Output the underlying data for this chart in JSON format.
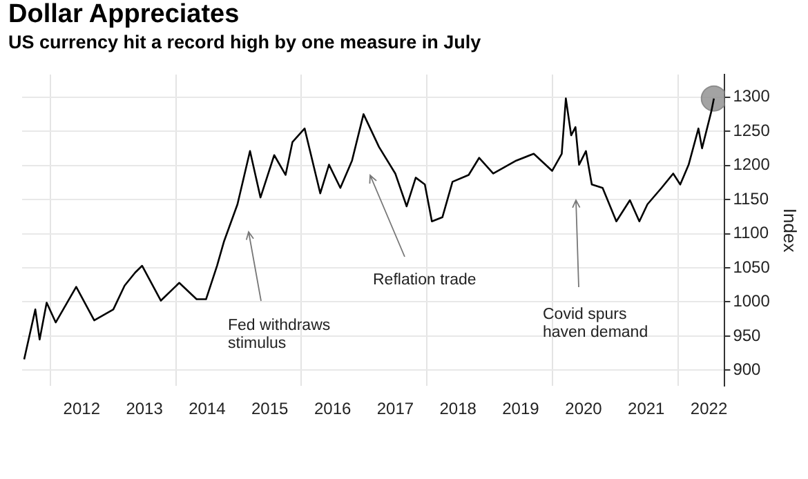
{
  "chart_data": {
    "type": "line",
    "title": "Dollar Appreciates",
    "subtitle": "US currency hit a record high by one measure in July",
    "ylabel": "Index",
    "xlim": [
      "2011-07-20",
      "2022-10-01"
    ],
    "xticks": [
      {
        "value": "2012-01-01",
        "label": null
      },
      {
        "value": "2012-07-01",
        "label": "2012"
      },
      {
        "value": "2013-07-01",
        "label": "2013"
      },
      {
        "value": "2014-01-01",
        "label": null
      },
      {
        "value": "2014-07-01",
        "label": "2014"
      },
      {
        "value": "2015-07-01",
        "label": "2015"
      },
      {
        "value": "2016-01-01",
        "label": null
      },
      {
        "value": "2016-07-01",
        "label": "2016"
      },
      {
        "value": "2017-07-01",
        "label": "2017"
      },
      {
        "value": "2018-01-01",
        "label": null
      },
      {
        "value": "2018-07-01",
        "label": "2018"
      },
      {
        "value": "2019-07-01",
        "label": "2019"
      },
      {
        "value": "2020-01-01",
        "label": null
      },
      {
        "value": "2020-07-01",
        "label": "2020"
      },
      {
        "value": "2021-07-01",
        "label": "2021"
      },
      {
        "value": "2022-01-01",
        "label": null
      },
      {
        "value": "2022-07-01",
        "label": "2022"
      }
    ],
    "ylim": [
      877,
      1333
    ],
    "yticks": [
      900,
      950,
      1000,
      1050,
      1100,
      1150,
      1200,
      1250,
      1300
    ],
    "grid": true,
    "legend": false,
    "marker": "none",
    "line_style": "solid",
    "series": [
      {
        "color": "#000000",
        "x": [
          "2011-08-01",
          "2011-10-05",
          "2011-10-30",
          "2011-12-10",
          "2012-02-01",
          "2012-05-30",
          "2012-09-12",
          "2013-01-01",
          "2013-03-08",
          "2013-05-08",
          "2013-06-18",
          "2013-10-05",
          "2014-01-20",
          "2014-05-01",
          "2014-06-25",
          "2014-08-28",
          "2014-10-08",
          "2014-12-25",
          "2015-03-08",
          "2015-05-08",
          "2015-07-27",
          "2015-10-01",
          "2015-11-10",
          "2016-01-20",
          "2016-04-20",
          "2016-06-10",
          "2016-08-15",
          "2016-10-22",
          "2016-12-28",
          "2017-03-28",
          "2017-07-01",
          "2017-09-05",
          "2017-10-28",
          "2017-12-20",
          "2018-01-30",
          "2018-04-01",
          "2018-05-30",
          "2018-09-01",
          "2018-11-01",
          "2019-01-22",
          "2019-06-05",
          "2019-09-15",
          "2019-12-31",
          "2020-02-25",
          "2020-03-20",
          "2020-04-20",
          "2020-05-15",
          "2020-06-05",
          "2020-07-15",
          "2020-08-18",
          "2020-10-20",
          "2021-01-08",
          "2021-03-28",
          "2021-05-22",
          "2021-07-08",
          "2021-09-28",
          "2021-12-05",
          "2022-01-15",
          "2022-03-05",
          "2022-05-01",
          "2022-05-22",
          "2022-07-15",
          "2022-07-30"
        ],
        "values": [
          916,
          989,
          945,
          999,
          970,
          1022,
          973,
          989,
          1024,
          1043,
          1053,
          1002,
          1028,
          1004,
          1004,
          1053,
          1089,
          1143,
          1221,
          1153,
          1215,
          1186,
          1234,
          1254,
          1159,
          1201,
          1167,
          1207,
          1275,
          1227,
          1188,
          1140,
          1182,
          1172,
          1118,
          1124,
          1176,
          1186,
          1211,
          1188,
          1207,
          1217,
          1192,
          1217,
          1298,
          1244,
          1256,
          1201,
          1221,
          1172,
          1167,
          1118,
          1149,
          1118,
          1143,
          1167,
          1188,
          1172,
          1201,
          1254,
          1225,
          1279,
          1298
        ]
      },
      {
        "type": "scatter",
        "marker": "circle",
        "color": "#8c8c8c",
        "x": [
          "2022-07-30"
        ],
        "values": [
          1298
        ]
      }
    ],
    "annotations": [
      "Fed withdraws stimulus",
      "Reflation trade",
      "Covid spurs haven demand"
    ]
  }
}
